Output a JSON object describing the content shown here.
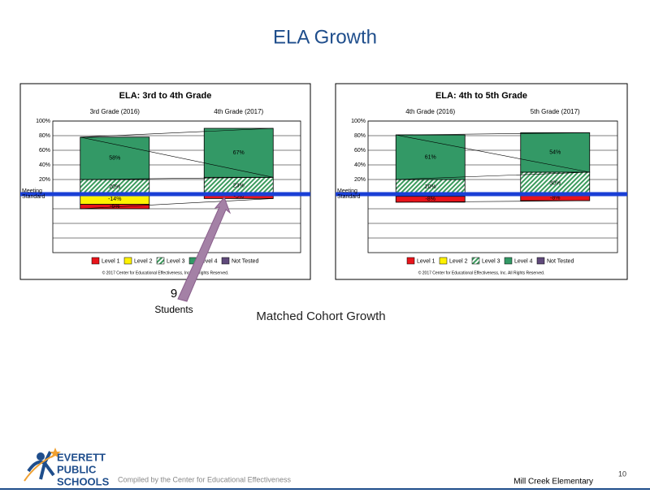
{
  "title": "ELA Growth",
  "chart_data": [
    {
      "type": "bar",
      "title": "ELA: 3rd to 4th Grade",
      "categories": [
        "3rd Grade (2016)",
        "4th Grade (2017)"
      ],
      "series": [
        {
          "name": "Level 1",
          "color": "#e8141b",
          "values": [
            -6,
            -5
          ],
          "value_labels": [
            "-6%",
            "-5%"
          ]
        },
        {
          "name": "Level 2",
          "color": "#fff200",
          "values": [
            -14,
            -1
          ],
          "value_labels": [
            "-14%",
            null
          ]
        },
        {
          "name": "Level 3",
          "color": "#3a9a5c",
          "hatch": true,
          "values": [
            20,
            23
          ],
          "value_labels": [
            "20%",
            "23%"
          ]
        },
        {
          "name": "Level 4",
          "color": "#339966",
          "values": [
            58,
            67
          ],
          "value_labels": [
            "58%",
            "67%"
          ]
        },
        {
          "name": "Not Tested",
          "color": "#604a7b",
          "values": [
            null,
            null
          ]
        }
      ],
      "ylim": [
        -80,
        100
      ],
      "yticks": [
        {
          "value": 100,
          "label": "100%"
        },
        {
          "value": 80,
          "label": "80%"
        },
        {
          "value": 60,
          "label": "60%"
        },
        {
          "value": 40,
          "label": "40%"
        },
        {
          "value": 20,
          "label": "20%"
        }
      ],
      "minor_grid": [
        -20,
        -40,
        -60
      ],
      "zero_label": [
        "Meeting",
        "Standard"
      ],
      "copyright": "© 2017 Center for Educational Effectiveness, Inc. All Rights Reserved."
    },
    {
      "type": "bar",
      "title": "ELA: 4th to 5th Grade",
      "categories": [
        "4th Grade (2016)",
        "5th Grade (2017)"
      ],
      "series": [
        {
          "name": "Level 1",
          "color": "#e8141b",
          "values": [
            -8,
            -8
          ],
          "value_labels": [
            "-8%",
            "-8%"
          ]
        },
        {
          "name": "Level 2",
          "color": "#fff200",
          "values": [
            -3,
            -1
          ],
          "value_labels": [
            "-3%",
            "-1%"
          ]
        },
        {
          "name": "Level 3",
          "color": "#3a9a5c",
          "hatch": true,
          "values": [
            20,
            30
          ],
          "value_labels": [
            "20%",
            "30%"
          ]
        },
        {
          "name": "Level 4",
          "color": "#339966",
          "values": [
            61,
            54
          ],
          "value_labels": [
            "61%",
            "54%"
          ]
        },
        {
          "name": "Not Tested",
          "color": "#604a7b",
          "values": [
            null,
            null
          ]
        }
      ],
      "ylim": [
        -80,
        100
      ],
      "yticks": [
        {
          "value": 100,
          "label": "100%"
        },
        {
          "value": 80,
          "label": "80%"
        },
        {
          "value": 60,
          "label": "60%"
        },
        {
          "value": 40,
          "label": "40%"
        },
        {
          "value": 20,
          "label": "20%"
        }
      ],
      "minor_grid": [
        -20,
        -40,
        -60
      ],
      "zero_label": [
        "Meeting",
        "Standard"
      ],
      "copyright": "© 2017 Center for Educational Effectiveness, Inc. All Rights Reserved."
    }
  ],
  "annotation": {
    "count": "9",
    "text": "Students"
  },
  "caption": "Matched Cohort Growth",
  "footer": {
    "logo": [
      "EVERETT",
      "PUBLIC",
      "SCHOOLS"
    ],
    "credit": "Compiled by the Center for Educational Effectiveness",
    "school": "Mill Creek Elementary",
    "page": "10"
  }
}
